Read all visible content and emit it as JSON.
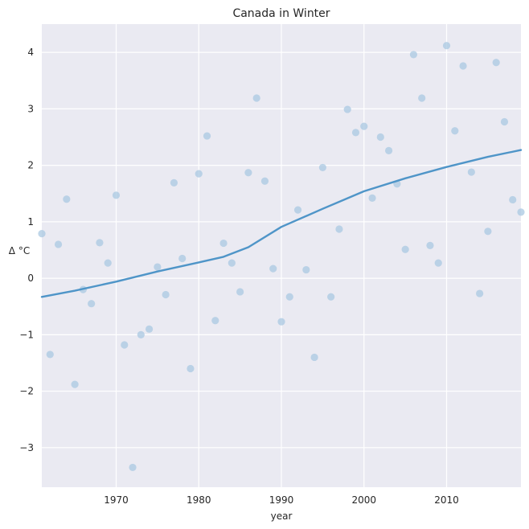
{
  "chart_data": {
    "type": "scatter",
    "title": "Canada in Winter",
    "xlabel": "year",
    "ylabel": "Δ °C",
    "xlim": [
      1961,
      2019
    ],
    "ylim": [
      -3.7,
      4.5
    ],
    "xticks": [
      1970,
      1980,
      1990,
      2000,
      2010
    ],
    "yticks": [
      -3,
      -2,
      -1,
      0,
      1,
      2,
      3,
      4
    ],
    "grid": true,
    "colors": {
      "background": "#eaeaf2",
      "grid": "#ffffff",
      "point": "#a9c8e2",
      "trend": "#4f95c8"
    },
    "series": [
      {
        "type": "scatter",
        "x": [
          1961,
          1962,
          1963,
          1964,
          1965,
          1966,
          1967,
          1968,
          1969,
          1970,
          1971,
          1972,
          1973,
          1974,
          1975,
          1976,
          1977,
          1978,
          1979,
          1980,
          1981,
          1982,
          1983,
          1984,
          1985,
          1986,
          1987,
          1988,
          1989,
          1990,
          1991,
          1992,
          1993,
          1994,
          1995,
          1996,
          1997,
          1998,
          1999,
          2000,
          2001,
          2002,
          2003,
          2004,
          2005,
          2006,
          2007,
          2008,
          2009,
          2010,
          2011,
          2012,
          2013,
          2014,
          2015,
          2016,
          2017,
          2018,
          2019
        ],
        "y": [
          0.79,
          -1.35,
          0.6,
          1.4,
          -1.88,
          -0.2,
          -0.45,
          0.63,
          0.27,
          1.47,
          -1.18,
          -3.35,
          -1.0,
          -0.9,
          0.2,
          -0.29,
          1.69,
          0.35,
          -1.6,
          1.85,
          2.52,
          -0.75,
          0.62,
          0.27,
          -0.24,
          1.87,
          3.19,
          1.72,
          0.17,
          -0.77,
          -0.33,
          1.21,
          0.15,
          -1.4,
          1.96,
          -0.33,
          0.87,
          2.99,
          2.58,
          2.69,
          1.42,
          2.5,
          2.26,
          1.67,
          0.51,
          3.96,
          3.19,
          0.58,
          0.27,
          4.12,
          2.61,
          3.76,
          1.88,
          -0.27,
          0.83,
          3.82,
          2.77,
          1.39,
          1.17
        ]
      },
      {
        "type": "line",
        "x": [
          1961,
          1965,
          1970,
          1975,
          1980,
          1983,
          1986,
          1990,
          1995,
          2000,
          2005,
          2010,
          2015,
          2019
        ],
        "y": [
          -0.33,
          -0.22,
          -0.06,
          0.12,
          0.28,
          0.38,
          0.55,
          0.91,
          1.23,
          1.54,
          1.77,
          1.97,
          2.15,
          2.27
        ]
      }
    ]
  }
}
